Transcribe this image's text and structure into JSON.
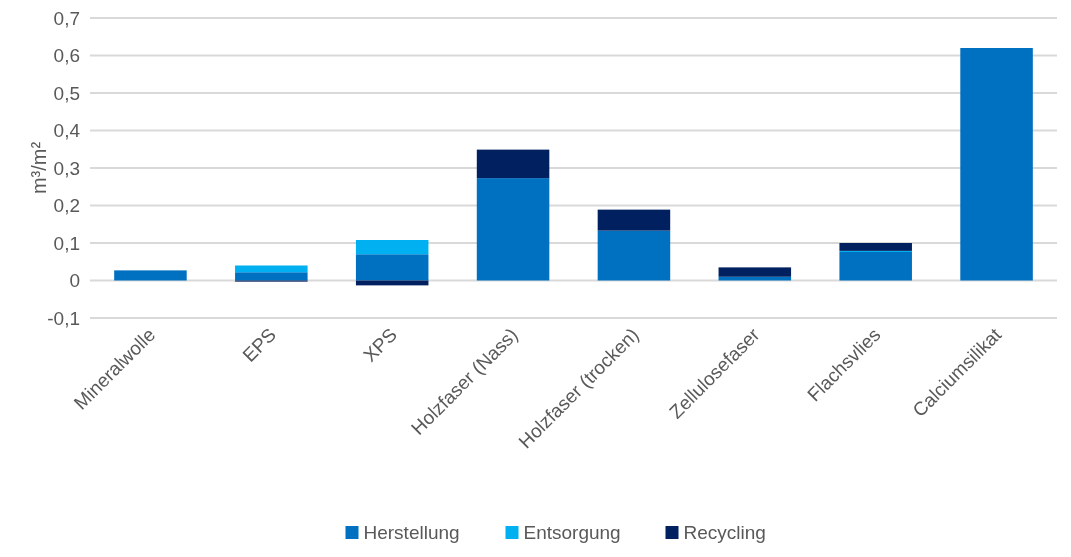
{
  "chart_data": {
    "type": "bar",
    "stacked": true,
    "ylabel": "m³/m²",
    "categories": [
      "Mineralwolle",
      "EPS",
      "XPS",
      "Holzfaser (Nass)",
      "Holzfaser (trocken)",
      "Zellulosefaser",
      "Flachsvlies",
      "Calciumsilikat"
    ],
    "series": [
      {
        "name": "Herstellung",
        "color": "#0070c0",
        "values": [
          0.027,
          0.022,
          0.07,
          0.273,
          0.133,
          0.01,
          0.076,
          0.62
        ]
      },
      {
        "name": "Entsorgung",
        "color": "#00b0f0",
        "values": [
          0,
          0.018,
          0.038,
          0,
          0,
          0,
          0.003,
          0
        ]
      },
      {
        "name": "Recycling",
        "color": "#002060",
        "values": [
          0,
          -0.003,
          -0.013,
          0.076,
          0.056,
          0.025,
          0.021,
          0
        ]
      }
    ],
    "ylim": [
      -0.1,
      0.7
    ],
    "yticks": [
      {
        "value": -0.1,
        "label": "-0,1"
      },
      0,
      {
        "value": 0.1,
        "label": "0,1"
      },
      {
        "value": 0.2,
        "label": "0,2"
      },
      {
        "value": 0.3,
        "label": "0,3"
      },
      {
        "value": 0.4,
        "label": "0,4"
      },
      {
        "value": 0.5,
        "label": "0,5"
      },
      {
        "value": 0.6,
        "label": "0,6"
      },
      {
        "value": 0.7,
        "label": "0,7"
      }
    ],
    "grid": "y",
    "legend": "bottom"
  }
}
